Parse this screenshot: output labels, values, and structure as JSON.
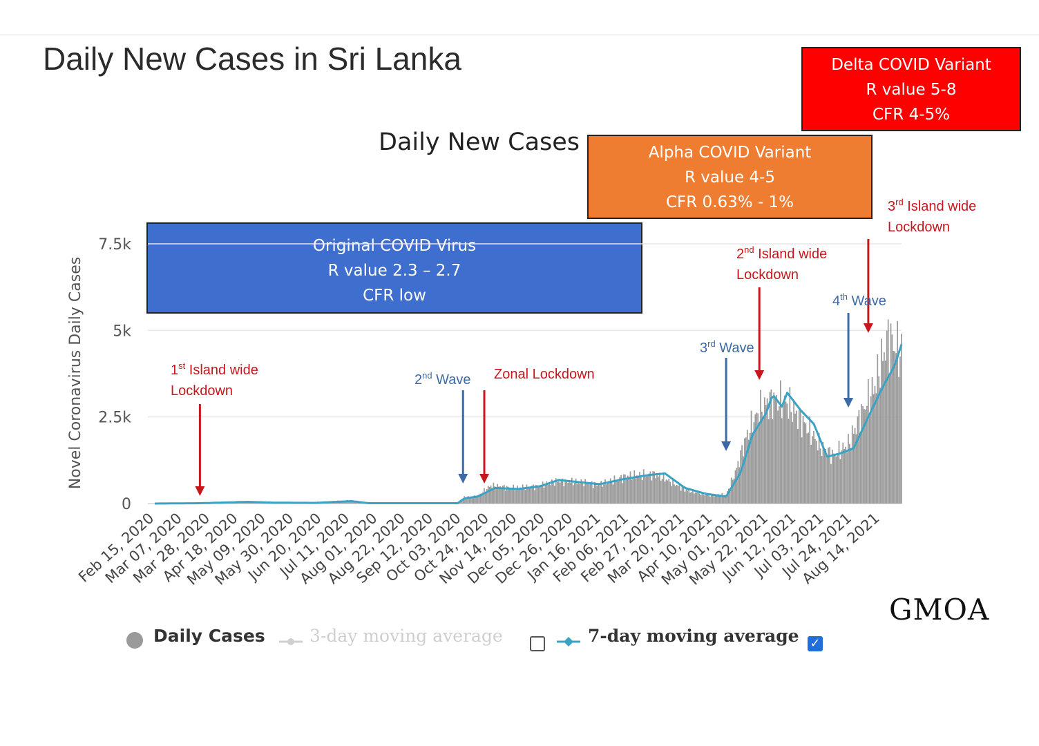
{
  "page_title": "Daily New Cases in Sri Lanka",
  "watermark": "GMOA",
  "colors": {
    "bars": "#9a9a9a",
    "seven_day_line": "#3aa3c4",
    "annotation_red": "#c8161d",
    "annotation_blue": "#3c6aa6",
    "original_box": "#3f6fce",
    "alpha_box": "#ee7d31",
    "delta_box": "#ff0000"
  },
  "variant_boxes": {
    "original": {
      "line1": "Original COVID Virus",
      "line2": "R value 2.3 – 2.7",
      "line3": "CFR low"
    },
    "alpha": {
      "line1": "Alpha COVID Variant",
      "line2": "R value 4-5",
      "line3": "CFR 0.63% - 1%"
    },
    "delta": {
      "line1": "Delta COVID Variant",
      "line2": "R value 5-8",
      "line3": "CFR 4-5%"
    }
  },
  "annotations": {
    "lockdown1": {
      "ord": "1",
      "sup": "st",
      "text": " Island wide",
      "line2": "Lockdown",
      "date": "Mar 20, 2020"
    },
    "wave2": {
      "ord": "2",
      "sup": "nd",
      "text": " Wave",
      "date": "Oct 04, 2020"
    },
    "zonal": {
      "text": "Zonal Lockdown",
      "date": "Oct 20, 2020"
    },
    "wave3": {
      "ord": "3",
      "sup": "rd",
      "text": " Wave",
      "date": "Apr 20, 2021"
    },
    "lockdown2": {
      "ord": "2",
      "sup": "nd",
      "text": " Island wide",
      "line2": "Lockdown",
      "date": "May 15, 2021"
    },
    "wave4": {
      "ord": "4",
      "sup": "th",
      "text": " Wave",
      "date": "Jul 21, 2021"
    },
    "lockdown3": {
      "ord": "3",
      "sup": "rd",
      "text": " Island wide",
      "line2": "Lockdown",
      "date": "Aug 05, 2021"
    }
  },
  "legend": {
    "daily": "Daily Cases",
    "three_day": "3-day moving average",
    "seven_day": "7-day moving average"
  },
  "chart_data": {
    "type": "bar",
    "title": "Daily New Cases",
    "ylabel": "Novel Coronavirus Daily Cases",
    "ylim": [
      0,
      7500
    ],
    "yticks": [
      0,
      2500,
      5000,
      7500
    ],
    "ytick_labels": [
      "0",
      "2.5k",
      "5k",
      "7.5k"
    ],
    "xlim": [
      "Feb 15, 2020",
      "Aug 30, 2021"
    ],
    "xticks": [
      "Feb 15, 2020",
      "Mar 07, 2020",
      "Mar 28, 2020",
      "Apr 18, 2020",
      "May 09, 2020",
      "May 30, 2020",
      "Jun 20, 2020",
      "Jul 11, 2020",
      "Aug 01, 2020",
      "Aug 22, 2020",
      "Sep 12, 2020",
      "Oct 03, 2020",
      "Oct 24, 2020",
      "Nov 14, 2020",
      "Dec 05, 2020",
      "Dec 26, 2020",
      "Jan 16, 2021",
      "Feb 06, 2021",
      "Feb 27, 2021",
      "Mar 20, 2021",
      "Apr 10, 2021",
      "May 01, 2021",
      "May 22, 2021",
      "Jun 12, 2021",
      "Jul 03, 2021",
      "Jul 24, 2021",
      "Aug 14, 2021"
    ],
    "grid": true,
    "legend_position": "bottom",
    "daily_cases_anchors": [
      [
        "Feb 15, 2020",
        0
      ],
      [
        "Mar 15, 2020",
        10
      ],
      [
        "Apr 20, 2020",
        40
      ],
      [
        "May 01, 2020",
        60
      ],
      [
        "May 20, 2020",
        30
      ],
      [
        "Jun 01, 2020",
        20
      ],
      [
        "Jul 11, 2020",
        90
      ],
      [
        "Jul 20, 2020",
        15
      ],
      [
        "Aug 15, 2020",
        5
      ],
      [
        "Sep 30, 2020",
        5
      ],
      [
        "Oct 05, 2020",
        180
      ],
      [
        "Oct 15, 2020",
        220
      ],
      [
        "Oct 25, 2020",
        520
      ],
      [
        "Nov 10, 2020",
        450
      ],
      [
        "Nov 30, 2020",
        500
      ],
      [
        "Dec 15, 2020",
        650
      ],
      [
        "Dec 30, 2020",
        620
      ],
      [
        "Jan 15, 2021",
        550
      ],
      [
        "Feb 05, 2021",
        800
      ],
      [
        "Feb 25, 2021",
        850
      ],
      [
        "Mar 05, 2021",
        720
      ],
      [
        "Mar 20, 2021",
        400
      ],
      [
        "Apr 05, 2021",
        250
      ],
      [
        "Apr 20, 2021",
        250
      ],
      [
        "Apr 27, 2021",
        900
      ],
      [
        "May 05, 2021",
        1900
      ],
      [
        "May 15, 2021",
        2700
      ],
      [
        "May 25, 2021",
        3000
      ],
      [
        "Jun 05, 2021",
        2900
      ],
      [
        "Jun 20, 2021",
        2200
      ],
      [
        "Jul 01, 2021",
        1600
      ],
      [
        "Jul 10, 2021",
        1400
      ],
      [
        "Jul 21, 2021",
        1700
      ],
      [
        "Aug 01, 2021",
        2700
      ],
      [
        "Aug 10, 2021",
        3400
      ],
      [
        "Aug 20, 2021",
        4800
      ],
      [
        "Aug 30, 2021",
        4300
      ]
    ],
    "seven_day_avg_anchors": [
      [
        "Feb 15, 2020",
        0
      ],
      [
        "Mar 20, 2020",
        10
      ],
      [
        "Apr 25, 2020",
        50
      ],
      [
        "May 15, 2020",
        25
      ],
      [
        "Jun 15, 2020",
        20
      ],
      [
        "Jul 12, 2020",
        70
      ],
      [
        "Jul 25, 2020",
        10
      ],
      [
        "Sep 30, 2020",
        10
      ],
      [
        "Oct 05, 2020",
        150
      ],
      [
        "Oct 15, 2020",
        200
      ],
      [
        "Oct 28, 2020",
        450
      ],
      [
        "Nov 15, 2020",
        420
      ],
      [
        "Dec 01, 2020",
        500
      ],
      [
        "Dec 15, 2020",
        680
      ],
      [
        "Dec 30, 2020",
        620
      ],
      [
        "Jan 15, 2021",
        560
      ],
      [
        "Feb 01, 2021",
        700
      ],
      [
        "Feb 20, 2021",
        820
      ],
      [
        "Mar 05, 2021",
        870
      ],
      [
        "Mar 20, 2021",
        450
      ],
      [
        "Apr 05, 2021",
        280
      ],
      [
        "Apr 20, 2021",
        200
      ],
      [
        "May 01, 2021",
        900
      ],
      [
        "May 10, 2021",
        2000
      ],
      [
        "May 20, 2021",
        2600
      ],
      [
        "May 25, 2021",
        3150
      ],
      [
        "Jun 01, 2021",
        2800
      ],
      [
        "Jun 05, 2021",
        3200
      ],
      [
        "Jun 15, 2021",
        2700
      ],
      [
        "Jun 25, 2021",
        2300
      ],
      [
        "Jul 05, 2021",
        1350
      ],
      [
        "Jul 15, 2021",
        1450
      ],
      [
        "Jul 25, 2021",
        1600
      ],
      [
        "Aug 05, 2021",
        2500
      ],
      [
        "Aug 15, 2021",
        3300
      ],
      [
        "Aug 25, 2021",
        4000
      ],
      [
        "Aug 30, 2021",
        4600
      ]
    ]
  }
}
